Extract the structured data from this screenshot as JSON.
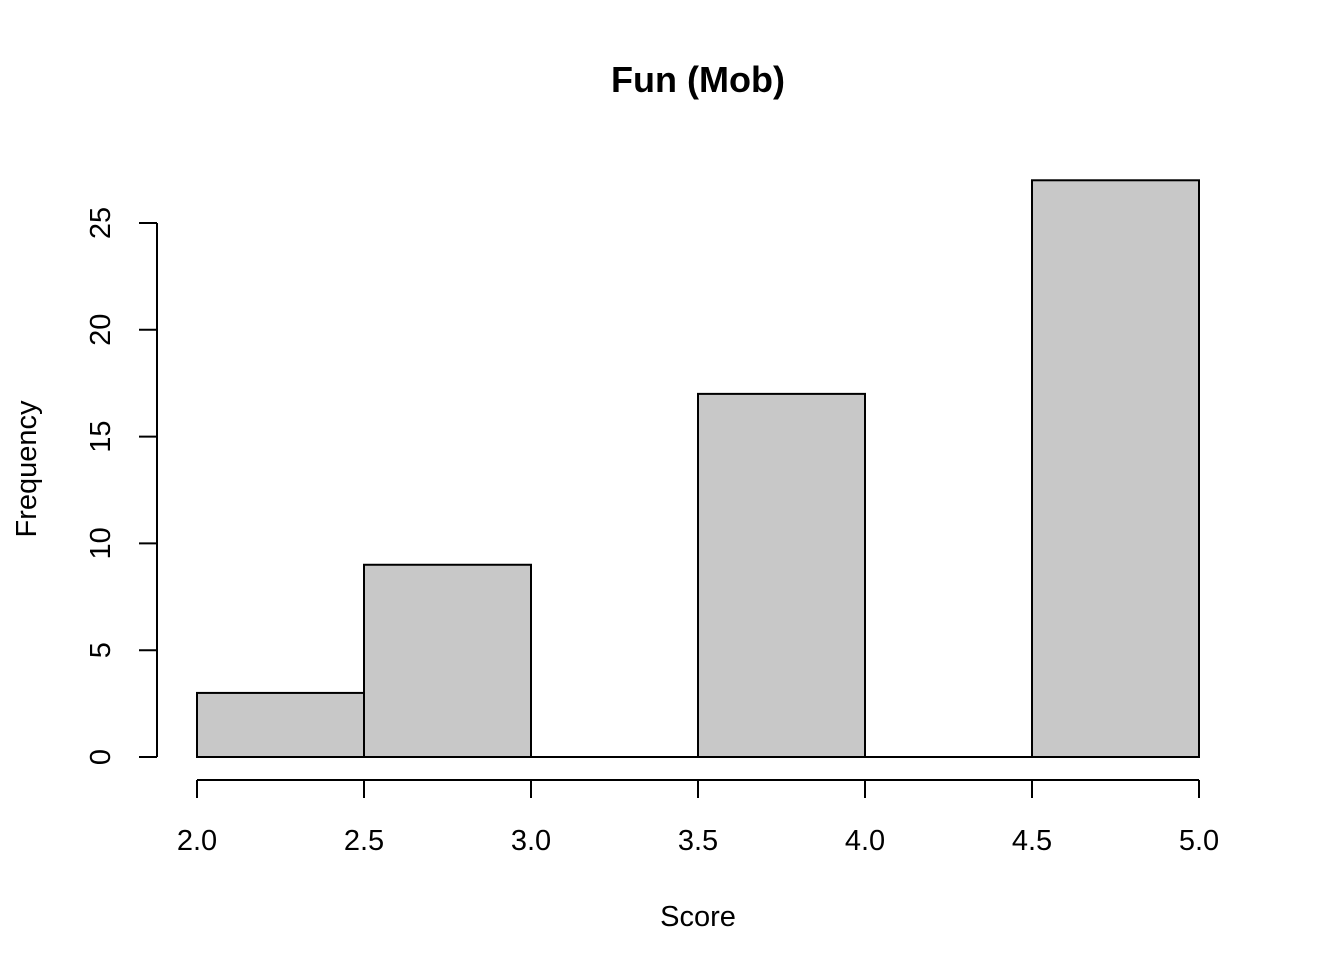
{
  "chart_data": {
    "type": "bar",
    "subtype": "histogram",
    "title": "Fun (Mob)",
    "xlabel": "Score",
    "ylabel": "Frequency",
    "bins": [
      {
        "from": 2.0,
        "to": 2.5,
        "count": 3
      },
      {
        "from": 2.5,
        "to": 3.0,
        "count": 9
      },
      {
        "from": 3.0,
        "to": 3.5,
        "count": 0
      },
      {
        "from": 3.5,
        "to": 4.0,
        "count": 17
      },
      {
        "from": 4.0,
        "to": 4.5,
        "count": 0
      },
      {
        "from": 4.5,
        "to": 5.0,
        "count": 27
      }
    ],
    "xlim": [
      2.0,
      5.0
    ],
    "ylim": [
      0,
      27
    ],
    "x_ticks": [
      "2.0",
      "2.5",
      "3.0",
      "3.5",
      "4.0",
      "4.5",
      "5.0"
    ],
    "x_tick_values": [
      2.0,
      2.5,
      3.0,
      3.5,
      4.0,
      4.5,
      5.0
    ],
    "y_ticks": [
      "0",
      "5",
      "10",
      "15",
      "20",
      "25"
    ],
    "y_tick_values": [
      0,
      5,
      10,
      15,
      20,
      25
    ],
    "grid": false,
    "bar_fill": "#c8c8c8",
    "bar_stroke": "#000000"
  }
}
